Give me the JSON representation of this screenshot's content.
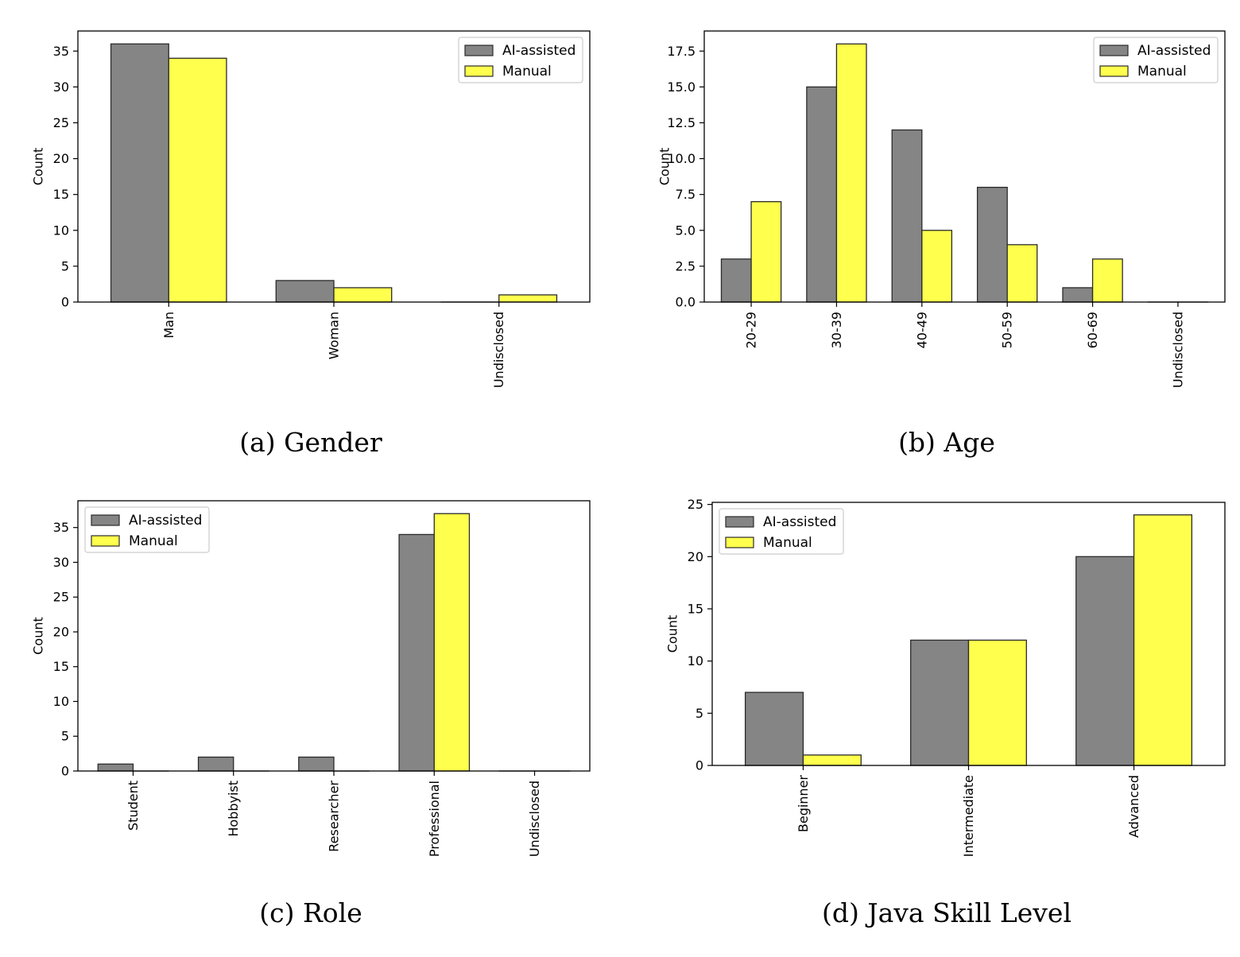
{
  "colors": {
    "ai": "#858585",
    "manual": "#ffff4d",
    "edge": "#2b2b2b"
  },
  "chart_data": [
    {
      "type": "bar",
      "caption": "(a)  Gender",
      "categories": [
        "Man",
        "Woman",
        "Undisclosed"
      ],
      "ylabel": "Count",
      "ylim": [
        0,
        37.8
      ],
      "yticks": [
        "0",
        "5",
        "10",
        "15",
        "20",
        "25",
        "30",
        "35"
      ],
      "legend_position": "top-right",
      "series": [
        {
          "name": "AI-assisted",
          "values": [
            36,
            3,
            0
          ]
        },
        {
          "name": "Manual",
          "values": [
            34,
            2,
            1
          ]
        }
      ]
    },
    {
      "type": "bar",
      "caption": "(b)  Age",
      "categories": [
        "20-29",
        "30-39",
        "40-49",
        "50-59",
        "60-69",
        "Undisclosed"
      ],
      "ylabel": "Count",
      "ylim": [
        0,
        18.9
      ],
      "yticks": [
        "0.0",
        "2.5",
        "5.0",
        "7.5",
        "10.0",
        "12.5",
        "15.0",
        "17.5"
      ],
      "legend_position": "top-right",
      "series": [
        {
          "name": "AI-assisted",
          "values": [
            3,
            15,
            12,
            8,
            1,
            0
          ]
        },
        {
          "name": "Manual",
          "values": [
            7,
            18,
            5,
            4,
            3,
            0
          ]
        }
      ]
    },
    {
      "type": "bar",
      "caption": "(c)  Role",
      "categories": [
        "Student",
        "Hobbyist",
        "Researcher",
        "Professional",
        "Undisclosed"
      ],
      "ylabel": "Count",
      "ylim": [
        0,
        38.85
      ],
      "yticks": [
        "0",
        "5",
        "10",
        "15",
        "20",
        "25",
        "30",
        "35"
      ],
      "legend_position": "top-left",
      "series": [
        {
          "name": "AI-assisted",
          "values": [
            1,
            2,
            2,
            34,
            0
          ]
        },
        {
          "name": "Manual",
          "values": [
            0,
            0,
            0,
            37,
            0
          ]
        }
      ]
    },
    {
      "type": "bar",
      "caption": "(d)  Java Skill Level",
      "categories": [
        "Beginner",
        "Intermediate",
        "Advanced"
      ],
      "ylabel": "Count",
      "ylim": [
        0,
        25.2
      ],
      "yticks": [
        "0",
        "5",
        "10",
        "15",
        "20",
        "25"
      ],
      "legend_position": "top-left",
      "series": [
        {
          "name": "AI-assisted",
          "values": [
            7,
            12,
            20
          ]
        },
        {
          "name": "Manual",
          "values": [
            1,
            12,
            24
          ]
        }
      ]
    }
  ]
}
